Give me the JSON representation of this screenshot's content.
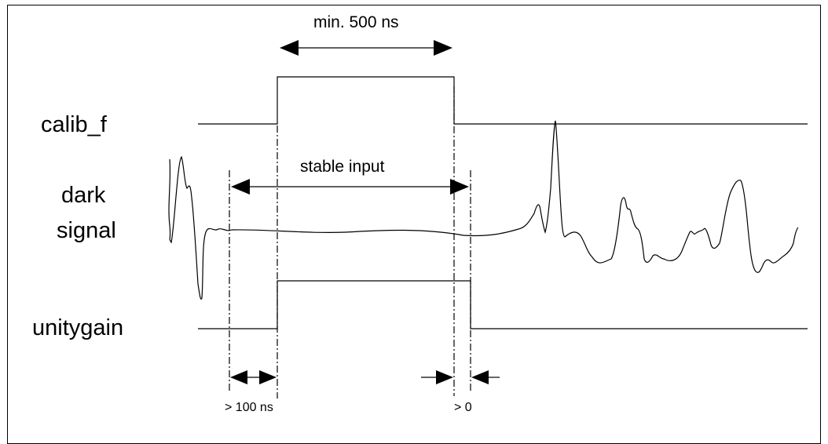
{
  "signals": {
    "calib_f": "calib_f",
    "dark_line1": "dark",
    "dark_line2": "signal",
    "unitygain": "unitygain"
  },
  "annotations": {
    "min_width": "min. 500 ns",
    "stable_input": "stable input",
    "setup_time": "> 100 ns",
    "hold_time": "> 0"
  }
}
